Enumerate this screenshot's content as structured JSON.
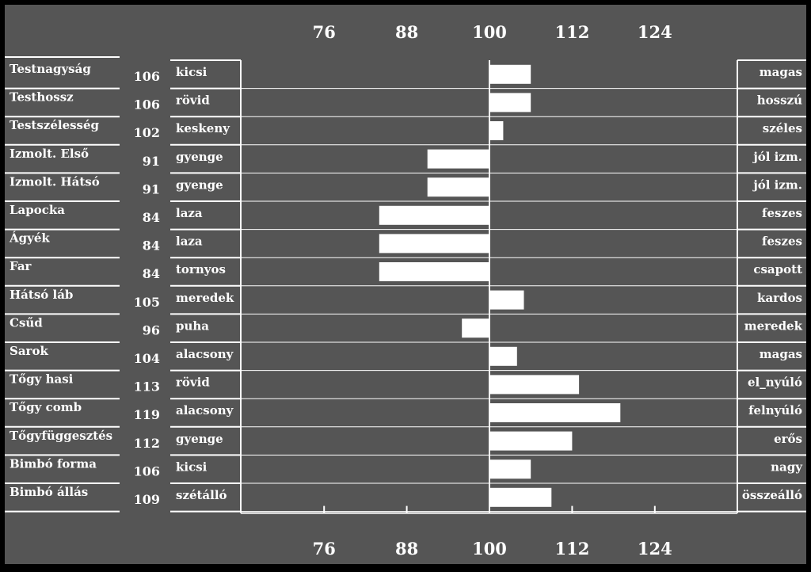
{
  "colors": {
    "background": "#555555",
    "foreground": "#ffffff",
    "outer": "#000000"
  },
  "chart_data": {
    "type": "bar",
    "orientation": "horizontal",
    "baseline": 100,
    "xlim": [
      64,
      136
    ],
    "x_ticks": [
      76,
      88,
      100,
      112,
      124
    ],
    "x_tick_labels": [
      "76",
      "88",
      "100",
      "112",
      "124"
    ],
    "grid": false,
    "categories": [
      "Testnagyság",
      "Testhossz",
      "Testszélesség",
      "Izmolt. Első",
      "Izmolt. Hátsó",
      "Lapocka",
      "Ágyék",
      "Far",
      "Hátsó láb",
      "Csűd",
      "Sarok",
      "Tőgy hasi",
      "Tőgy comb",
      "Tőgyfüggesztés",
      "Bimbó forma",
      "Bimbó állás"
    ],
    "values": [
      106,
      106,
      102,
      91,
      91,
      84,
      84,
      84,
      105,
      96,
      104,
      113,
      119,
      112,
      106,
      109
    ],
    "value_labels": [
      "106",
      "106",
      "102",
      "91",
      "91",
      "84",
      "84",
      "84",
      "105",
      "96",
      "104",
      "113",
      "119",
      "112",
      "106",
      "109"
    ],
    "left_descriptors": [
      "kicsi",
      "rövid",
      "keskeny",
      "gyenge",
      "gyenge",
      "laza",
      "laza",
      "tornyos",
      "meredek",
      "puha",
      "alacsony",
      "rövid",
      "alacsony",
      "gyenge",
      "kicsi",
      "szétálló"
    ],
    "right_descriptors": [
      "magas",
      "hosszú",
      "széles",
      "jól izm.",
      "jól izm.",
      "feszes",
      "feszes",
      "csapott",
      "kardos",
      "meredek",
      "magas",
      "el_nyúló",
      "felnyúló",
      "erős",
      "nagy",
      "összeálló"
    ]
  }
}
